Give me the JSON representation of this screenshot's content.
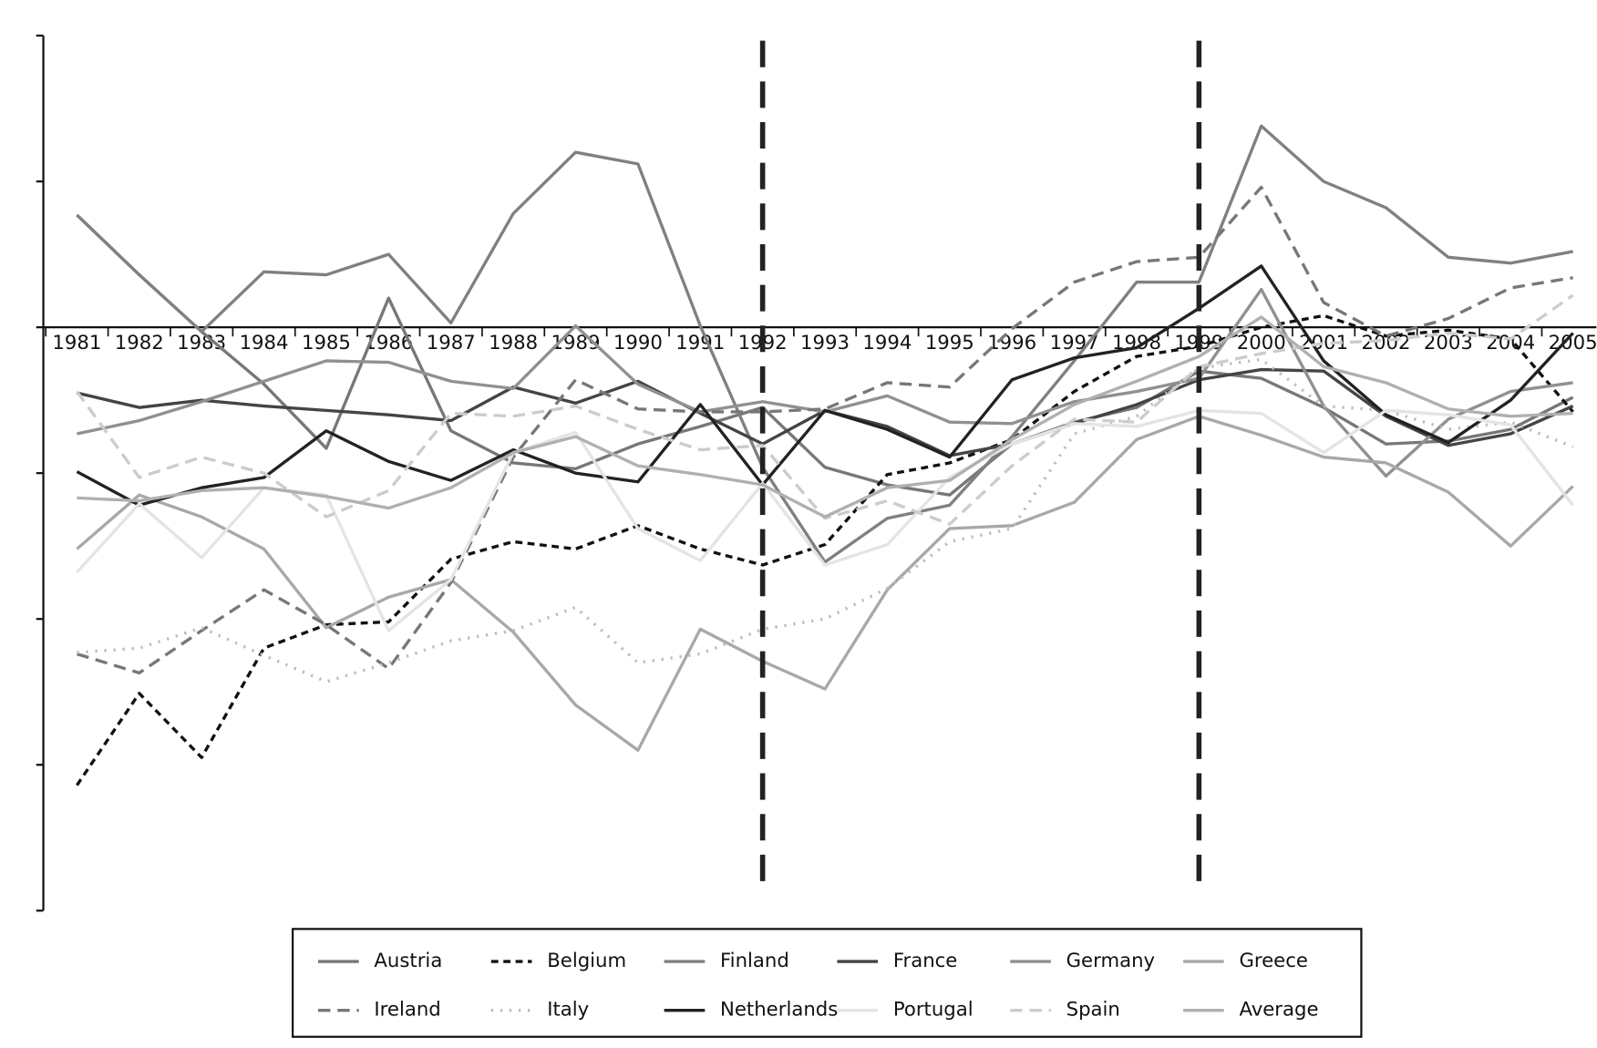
{
  "chart_data": {
    "type": "line",
    "categories": [
      "1981",
      "1982",
      "1983",
      "1984",
      "1985",
      "1986",
      "1987",
      "1988",
      "1989",
      "1990",
      "1991",
      "1992",
      "1993",
      "1994",
      "1995",
      "1996",
      "1997",
      "1998",
      "1999",
      "2000",
      "2001",
      "2002",
      "2003",
      "2004",
      "2005"
    ],
    "ylim": [
      -4,
      2
    ],
    "yticks": [
      -4,
      -3,
      -2,
      -1,
      0,
      1,
      2
    ],
    "vlines": [
      "1992",
      "1999"
    ],
    "series": [
      {
        "name": "Austria",
        "color": "#777777",
        "dash": "solid",
        "values": [
          0.77,
          0.36,
          -0.03,
          -0.39,
          -0.83,
          0.2,
          -0.71,
          -0.93,
          -0.97,
          -0.8,
          -0.68,
          -0.55,
          -0.96,
          -1.08,
          -1.15,
          -0.8,
          -0.65,
          -0.55,
          -0.3,
          -0.35,
          -0.55,
          -0.8,
          -0.78,
          -0.7,
          -0.48
        ]
      },
      {
        "name": "Belgium",
        "color": "#111111",
        "dash": "dashed",
        "values": [
          -3.14,
          -2.51,
          -2.95,
          -2.2,
          -2.04,
          -2.02,
          -1.59,
          -1.47,
          -1.52,
          -1.36,
          -1.52,
          -1.63,
          -1.49,
          -1.01,
          -0.93,
          -0.77,
          -0.44,
          -0.2,
          -0.13,
          0.0,
          0.08,
          -0.06,
          -0.02,
          -0.08,
          -0.58
        ]
      },
      {
        "name": "Finland",
        "color": "#808080",
        "dash": "solid",
        "values": [
          0.77,
          0.36,
          -0.03,
          0.38,
          0.36,
          0.5,
          0.03,
          0.78,
          1.2,
          1.12,
          0.01,
          -0.96,
          -1.61,
          -1.31,
          -1.22,
          -0.75,
          -0.23,
          0.31,
          0.31,
          1.38,
          1.0,
          0.82,
          0.48,
          0.44,
          0.52
        ]
      },
      {
        "name": "France",
        "color": "#444444",
        "dash": "solid",
        "values": [
          -0.45,
          -0.55,
          -0.5,
          -0.54,
          -0.57,
          -0.6,
          -0.64,
          -0.41,
          -0.52,
          -0.37,
          -0.59,
          -0.8,
          -0.57,
          -0.68,
          -0.88,
          -0.8,
          -0.66,
          -0.53,
          -0.36,
          -0.29,
          -0.3,
          -0.61,
          -0.81,
          -0.73,
          -0.54
        ]
      },
      {
        "name": "Germany",
        "color": "#909090",
        "dash": "solid",
        "values": [
          -0.73,
          -0.64,
          -0.51,
          -0.37,
          -0.23,
          -0.24,
          -0.37,
          -0.42,
          0.01,
          -0.39,
          -0.58,
          -0.51,
          -0.58,
          -0.47,
          -0.65,
          -0.66,
          -0.51,
          -0.44,
          -0.35,
          0.26,
          -0.54,
          -1.02,
          -0.63,
          -0.44,
          -0.38
        ]
      },
      {
        "name": "Greece",
        "color": "#a8a8a8",
        "dash": "solid",
        "values": [
          -1.52,
          -1.15,
          -1.3,
          -1.52,
          -2.06,
          -1.85,
          -1.73,
          -2.09,
          -2.59,
          -2.9,
          -2.07,
          -2.29,
          -2.48,
          -1.8,
          -1.38,
          -1.36,
          -1.2,
          -0.77,
          -0.61,
          -0.74,
          -0.89,
          -0.93,
          -1.13,
          -1.5,
          -1.09
        ]
      },
      {
        "name": "Ireland",
        "color": "#777777",
        "dash": "longdash",
        "values": [
          -2.24,
          -2.37,
          -2.08,
          -1.8,
          -2.04,
          -2.34,
          -1.75,
          -0.89,
          -0.36,
          -0.56,
          -0.58,
          -0.58,
          -0.56,
          -0.38,
          -0.41,
          -0.01,
          0.31,
          0.45,
          0.48,
          0.96,
          0.17,
          -0.06,
          0.06,
          0.27,
          0.34
        ]
      },
      {
        "name": "Italy",
        "color": "#bbbbbb",
        "dash": "dotted",
        "values": [
          -2.23,
          -2.2,
          -2.06,
          -2.25,
          -2.43,
          -2.3,
          -2.15,
          -2.08,
          -1.92,
          -2.3,
          -2.24,
          -2.07,
          -2.0,
          -1.79,
          -1.47,
          -1.38,
          -0.73,
          -0.61,
          -0.28,
          -0.22,
          -0.54,
          -0.57,
          -0.7,
          -0.65,
          -0.82
        ]
      },
      {
        "name": "Netherlands",
        "color": "#222222",
        "dash": "solid",
        "values": [
          -0.99,
          -1.22,
          -1.1,
          -1.03,
          -0.71,
          -0.92,
          -1.05,
          -0.84,
          -1.0,
          -1.06,
          -0.53,
          -1.08,
          -0.57,
          -0.7,
          -0.89,
          -0.36,
          -0.21,
          -0.14,
          0.13,
          0.42,
          -0.23,
          -0.6,
          -0.79,
          -0.5,
          -0.04
        ]
      },
      {
        "name": "Portugal",
        "color": "#e4e4e4",
        "dash": "solid",
        "values": [
          -1.68,
          -1.21,
          -1.58,
          -1.1,
          -1.15,
          -2.08,
          -1.73,
          -0.86,
          -0.72,
          -1.38,
          -1.6,
          -1.07,
          -1.63,
          -1.49,
          -1.03,
          -0.8,
          -0.66,
          -0.68,
          -0.57,
          -0.59,
          -0.86,
          -0.57,
          -0.6,
          -0.67,
          -1.22
        ]
      },
      {
        "name": "Spain",
        "color": "#cccccc",
        "dash": "longdash",
        "values": [
          -0.44,
          -1.03,
          -0.89,
          -1.0,
          -1.3,
          -1.12,
          -0.59,
          -0.61,
          -0.54,
          -0.7,
          -0.84,
          -0.81,
          -1.31,
          -1.19,
          -1.35,
          -0.95,
          -0.63,
          -0.65,
          -0.27,
          -0.18,
          -0.11,
          -0.09,
          -0.04,
          -0.08,
          0.22
        ]
      },
      {
        "name": "Average",
        "color": "#b0b0b0",
        "dash": "solid",
        "values": [
          -1.17,
          -1.19,
          -1.12,
          -1.1,
          -1.16,
          -1.24,
          -1.1,
          -0.86,
          -0.75,
          -0.95,
          -1.01,
          -1.08,
          -1.3,
          -1.1,
          -1.05,
          -0.77,
          -0.53,
          -0.37,
          -0.2,
          0.07,
          -0.27,
          -0.38,
          -0.56,
          -0.61,
          -0.59
        ]
      }
    ]
  }
}
